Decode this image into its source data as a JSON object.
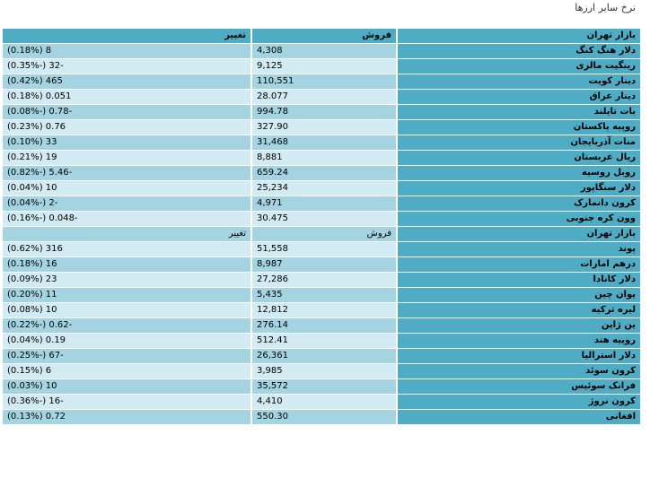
{
  "page": {
    "title": "نرخ سایر ارزها"
  },
  "header": {
    "market": "بازار تهران",
    "sell": "فروش",
    "change": "تغییر"
  },
  "group1": [
    {
      "name": "دلار هنگ کنگ",
      "sell": "4,308",
      "change": "8 (0.18%)"
    },
    {
      "name": "رینگیت مالزی",
      "sell": "9,125",
      "change": "-32 (-0.35%)"
    },
    {
      "name": "دینار کویت",
      "sell": "110,551",
      "change": "465 (0.42%)"
    },
    {
      "name": "دینار عراق",
      "sell": "28.077",
      "change": "0.051 (0.18%)"
    },
    {
      "name": "بات تایلند",
      "sell": "994.78",
      "change": "-0.78 (-0.08%)"
    },
    {
      "name": "روپیه پاکستان",
      "sell": "327.90",
      "change": "0.76 (0.23%)"
    },
    {
      "name": "منات آذربایجان",
      "sell": "31,468",
      "change": "33 (0.10%)"
    },
    {
      "name": "ریال عربستان",
      "sell": "8,881",
      "change": "19 (0.21%)"
    },
    {
      "name": "روبل روسیه",
      "sell": "659.24",
      "change": "-5.46 (-0.82%)"
    },
    {
      "name": "دلار سنگاپور",
      "sell": "25,234",
      "change": "10 (0.04%)"
    },
    {
      "name": "کرون دانمارک",
      "sell": "4,971",
      "change": "-2 (-0.04%)"
    },
    {
      "name": "وون کره جنوبی",
      "sell": "30.475",
      "change": "-0.048 (-0.16%)"
    }
  ],
  "subheader": {
    "market": "بازار تهران",
    "sell": "فروش",
    "change": "تغییر"
  },
  "group2": [
    {
      "name": "پوند",
      "sell": "51,558",
      "change": "316 (0.62%)"
    },
    {
      "name": "درهم امارات",
      "sell": "8,987",
      "change": "16 (0.18%)"
    },
    {
      "name": "دلار کانادا",
      "sell": "27,286",
      "change": "23 (0.09%)"
    },
    {
      "name": "یوان چین",
      "sell": "5,435",
      "change": "11 (0.20%)"
    },
    {
      "name": "لیره ترکیه",
      "sell": "12,812",
      "change": "10 (0.08%)"
    },
    {
      "name": "ین ژاپن",
      "sell": "276.14",
      "change": "-0.62 (-0.22%)"
    },
    {
      "name": "روپیه هند",
      "sell": "512.41",
      "change": "0.19 (0.04%)"
    },
    {
      "name": "دلار استرالیا",
      "sell": "26,361",
      "change": "-67 (-0.25%)"
    },
    {
      "name": "کرون سوئد",
      "sell": "3,985",
      "change": "6 (0.15%)"
    },
    {
      "name": "فرانک سوئیس",
      "sell": "35,572",
      "change": "10 (0.03%)"
    },
    {
      "name": "کرون نروژ",
      "sell": "4,410",
      "change": "-16 (-0.36%)"
    },
    {
      "name": "افغانی",
      "sell": "550.30",
      "change": "0.72 (0.13%)"
    }
  ]
}
